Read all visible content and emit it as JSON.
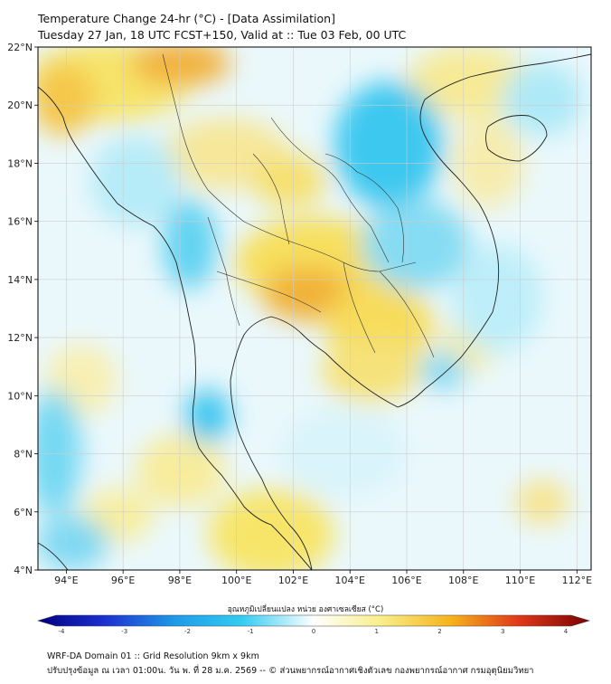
{
  "header": {
    "title_line1": "Temperature Change 24-hr (°C) - [Data Assimilation]",
    "title_line2": "Tuesday 27 Jan, 18 UTC FCST+150, Valid at :: Tue 03 Feb, 00 UTC"
  },
  "map": {
    "lat_ticks": [
      "4°N",
      "6°N",
      "8°N",
      "10°N",
      "12°N",
      "14°N",
      "16°N",
      "18°N",
      "20°N",
      "22°N"
    ],
    "lon_ticks": [
      "94°E",
      "96°E",
      "98°E",
      "100°E",
      "102°E",
      "104°E",
      "106°E",
      "108°E",
      "110°E",
      "112°E"
    ]
  },
  "colorbar": {
    "label": "อุณหภูมิเปลี่ยนแปลง หน่วย องศาเซลเซียส (°C)",
    "ticks": [
      "-4",
      "-3",
      "-2",
      "-1",
      "0",
      "1",
      "2",
      "3",
      "4"
    ],
    "colors": {
      "cold_end": "#000080",
      "cool": "#22c4ee",
      "neutral": "#ffffff",
      "warm": "#f5e24a",
      "hot_end": "#8b0000"
    }
  },
  "footer": {
    "line1": "WRF-DA Domain 01 :: Grid Resolution 9km x 9km",
    "line2": "ปรับปรุงข้อมูล ณ เวลา 01:00น. วัน พ. ที่ 28 ม.ค. 2569 -- © ส่วนพยากรณ์อากาศเชิงตัวเลข กองพยากรณ์อากาศ กรมอุตุนิยมวิทยา"
  }
}
